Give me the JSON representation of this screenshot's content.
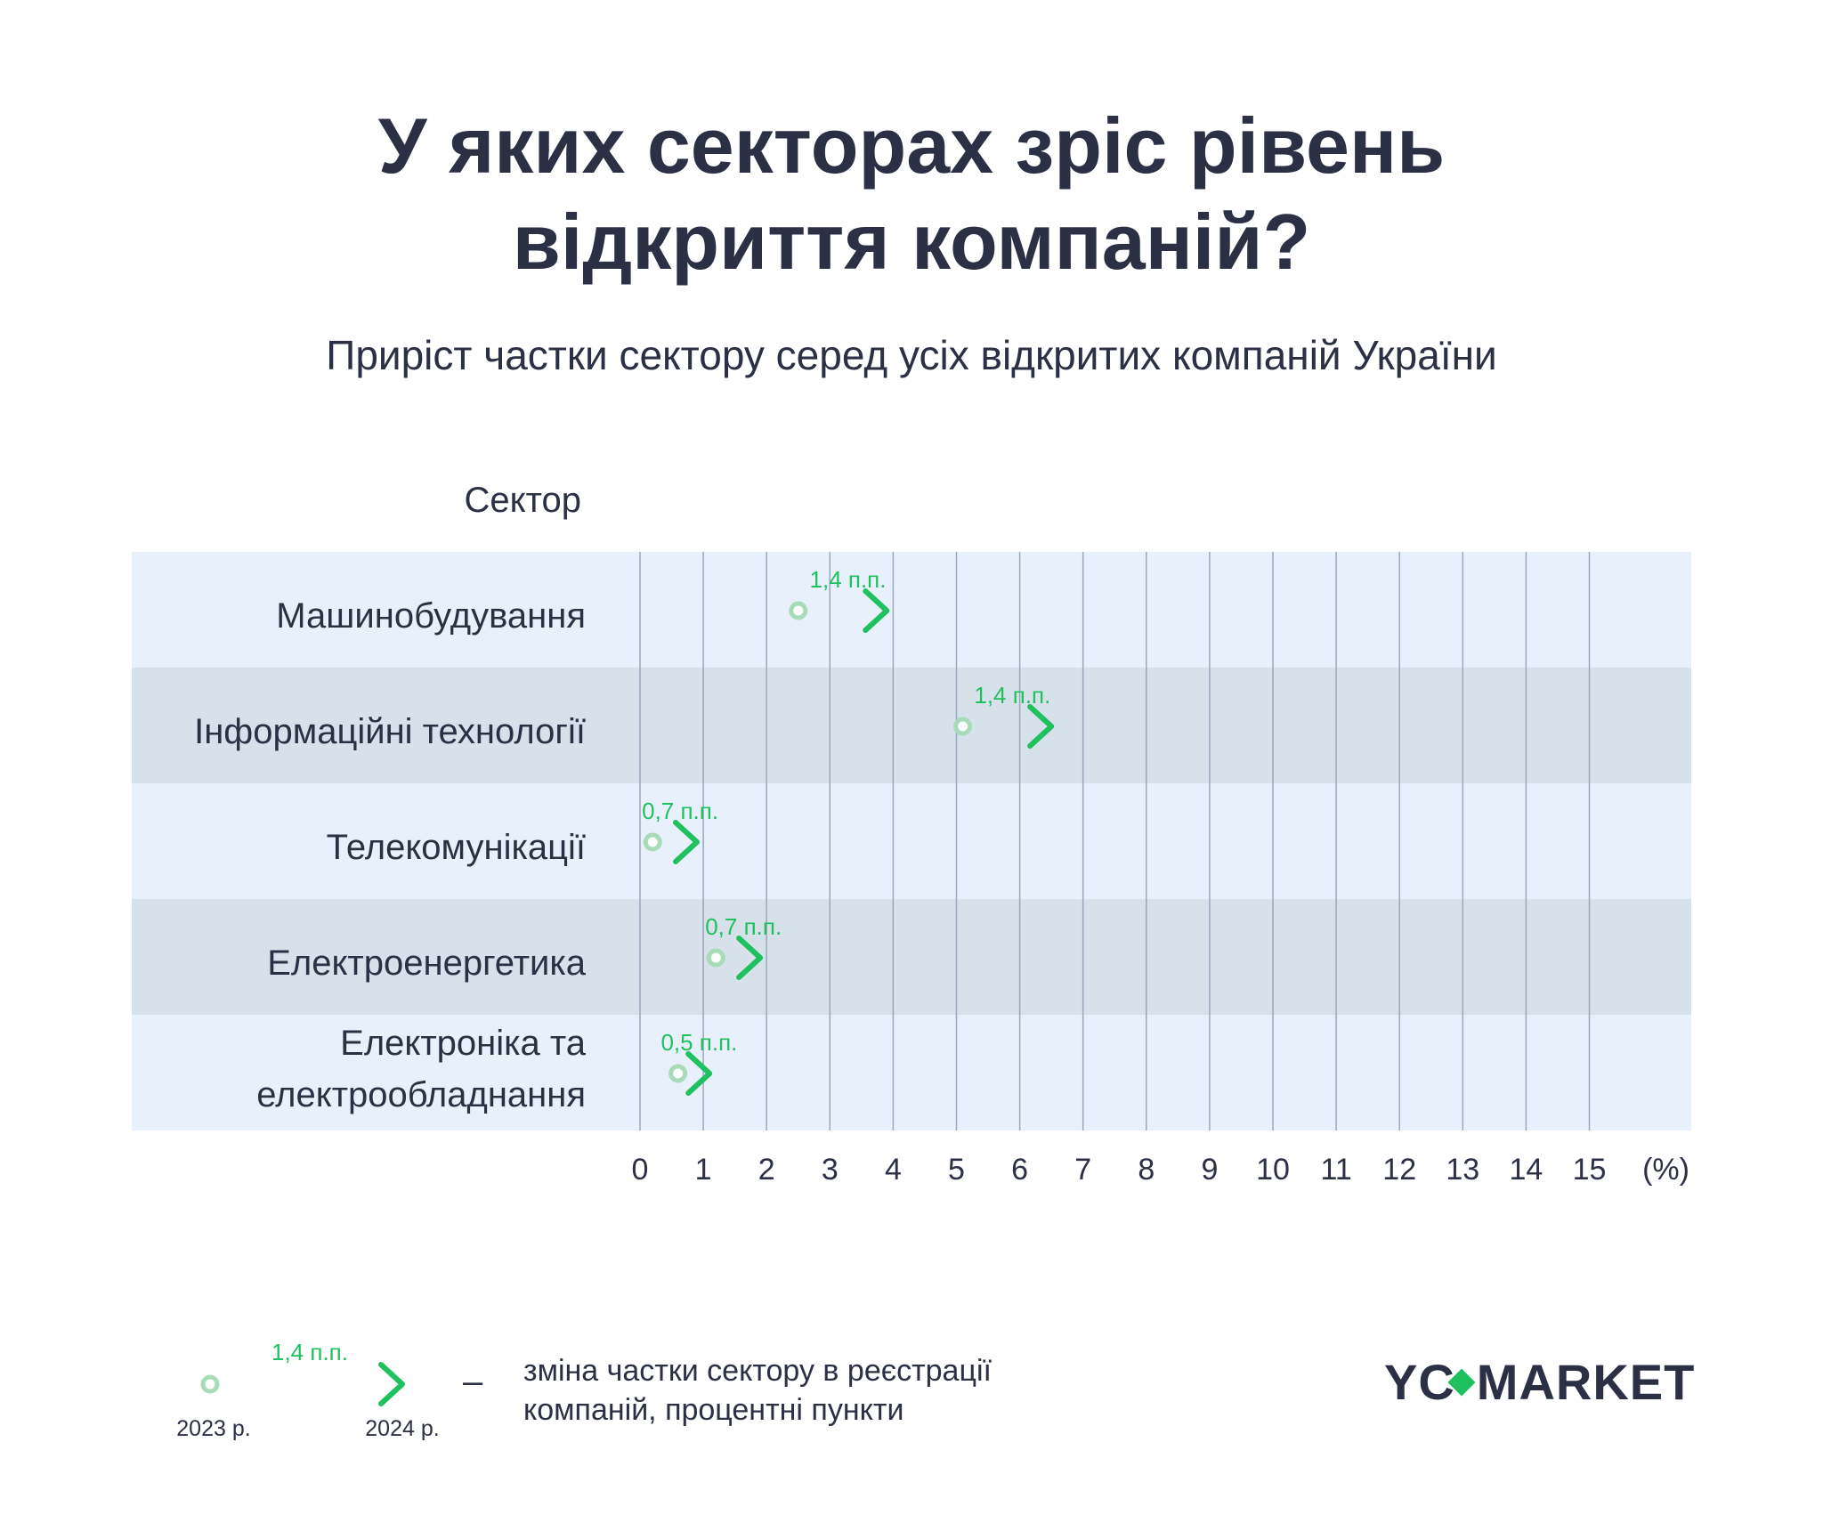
{
  "header": {
    "title_line1": "У яких секторах зріс рівень",
    "title_line2": "відкриття компаній?",
    "subtitle": "Приріст частки сектору серед усіх відкритих компаній України",
    "column_header": "Сектор"
  },
  "chart_data": {
    "type": "arrow",
    "x_unit": "(%)",
    "xlim": [
      0,
      15
    ],
    "x_ticks": [
      "0",
      "1",
      "2",
      "3",
      "4",
      "5",
      "6",
      "7",
      "8",
      "9",
      "10",
      "11",
      "12",
      "13",
      "14",
      "15"
    ],
    "grid": true,
    "categories": [
      "Машинобудування",
      "Інформаційні технології",
      "Телекомунікації",
      "Електроенергетика",
      "Електроніка та електрообладнання"
    ],
    "series": [
      {
        "name": "2023 р.",
        "values": [
          2.5,
          5.1,
          0.2,
          1.2,
          0.6
        ]
      },
      {
        "name": "2024 р.",
        "values": [
          3.9,
          6.5,
          0.9,
          1.9,
          1.1
        ]
      }
    ],
    "labels": [
      "1,4 п.п.",
      "1,4 п.п.",
      "0,7 п.п.",
      "0,7 п.п.",
      "0,5 п.п."
    ],
    "row_colors": [
      "#e8f1fb",
      "#d6e1ea"
    ],
    "accent_color": "#1fc15f",
    "start_color": "#a8dcb8"
  },
  "legend": {
    "label": "1,4 п.п.",
    "start": "2023 р.",
    "end": "2024 р.",
    "dash": "–",
    "description_line1": "зміна частки сектору в реєстрації",
    "description_line2": "компаній, процентні пункти"
  },
  "logo": {
    "left": "YC",
    "right": "MARKET"
  }
}
